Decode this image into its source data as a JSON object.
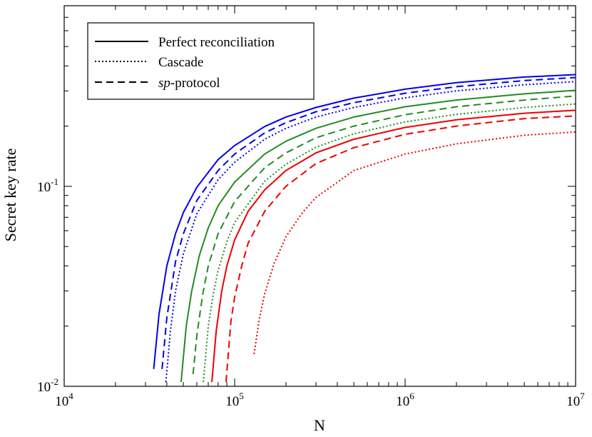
{
  "chart_data": {
    "type": "line",
    "xlabel": "N",
    "ylabel": "Secret key rate",
    "xscale": "log",
    "yscale": "log",
    "xlim": [
      10000,
      10000000
    ],
    "ylim": [
      0.01,
      0.8
    ],
    "x_ticks": [
      {
        "base": "10",
        "exp": "4",
        "value": 10000
      },
      {
        "base": "10",
        "exp": "5",
        "value": 100000
      },
      {
        "base": "10",
        "exp": "6",
        "value": 1000000
      },
      {
        "base": "10",
        "exp": "7",
        "value": 10000000
      }
    ],
    "y_ticks": [
      {
        "base": "10",
        "exp": "-2",
        "value": 0.01
      },
      {
        "base": "10",
        "exp": "-1",
        "value": 0.1
      }
    ],
    "grid": false,
    "legend": {
      "position": "top-left",
      "entries": [
        {
          "style": "solid",
          "label": "Perfect reconciliation",
          "italic_prefix": "",
          "suffix": ""
        },
        {
          "style": "dotted",
          "label": "Cascade",
          "italic_prefix": "",
          "suffix": ""
        },
        {
          "style": "dashed",
          "label": "",
          "italic_prefix": "sp",
          "suffix": "-protocol"
        }
      ]
    },
    "series": [
      {
        "color": "#0000ee",
        "style": "solid",
        "x": [
          33500,
          36000,
          40000,
          45000,
          50000,
          60000,
          80000,
          100000,
          150000,
          200000,
          300000,
          500000,
          1000000,
          2000000,
          5000000,
          10000000
        ],
        "values": [
          0.0122,
          0.023,
          0.04,
          0.058,
          0.074,
          0.099,
          0.136,
          0.16,
          0.199,
          0.222,
          0.248,
          0.276,
          0.306,
          0.33,
          0.352,
          0.362
        ]
      },
      {
        "color": "#0000ee",
        "style": "dashed",
        "x": [
          37500,
          40000,
          45000,
          50000,
          60000,
          80000,
          100000,
          150000,
          200000,
          300000,
          500000,
          1000000,
          2000000,
          5000000,
          10000000
        ],
        "values": [
          0.0122,
          0.022,
          0.042,
          0.058,
          0.085,
          0.12,
          0.145,
          0.185,
          0.208,
          0.236,
          0.262,
          0.292,
          0.315,
          0.338,
          0.35
        ]
      },
      {
        "color": "#0000ee",
        "style": "dotted",
        "x": [
          39500,
          42000,
          45000,
          50000,
          60000,
          80000,
          100000,
          150000,
          200000,
          300000,
          500000,
          1000000,
          2000000,
          5000000,
          10000000
        ],
        "values": [
          0.0105,
          0.019,
          0.03,
          0.046,
          0.073,
          0.108,
          0.132,
          0.172,
          0.195,
          0.222,
          0.248,
          0.277,
          0.3,
          0.322,
          0.334
        ]
      },
      {
        "color": "#228b22",
        "style": "solid",
        "x": [
          48500,
          52000,
          56000,
          62000,
          70000,
          80000,
          100000,
          150000,
          200000,
          300000,
          500000,
          1000000,
          2000000,
          5000000,
          10000000
        ],
        "values": [
          0.0105,
          0.02,
          0.03,
          0.045,
          0.062,
          0.08,
          0.105,
          0.145,
          0.168,
          0.195,
          0.222,
          0.25,
          0.27,
          0.29,
          0.302
        ]
      },
      {
        "color": "#228b22",
        "style": "dashed",
        "x": [
          57000,
          60000,
          65000,
          70000,
          80000,
          100000,
          150000,
          200000,
          300000,
          500000,
          1000000,
          2000000,
          5000000,
          10000000
        ],
        "values": [
          0.0115,
          0.018,
          0.029,
          0.04,
          0.058,
          0.084,
          0.124,
          0.147,
          0.175,
          0.2,
          0.228,
          0.25,
          0.27,
          0.283
        ]
      },
      {
        "color": "#228b22",
        "style": "dotted",
        "x": [
          65500,
          70000,
          75000,
          80000,
          90000,
          100000,
          150000,
          200000,
          300000,
          500000,
          1000000,
          2000000,
          5000000,
          10000000
        ],
        "values": [
          0.0105,
          0.02,
          0.029,
          0.038,
          0.053,
          0.066,
          0.106,
          0.129,
          0.157,
          0.183,
          0.21,
          0.229,
          0.248,
          0.258
        ]
      },
      {
        "color": "#ee0000",
        "style": "solid",
        "x": [
          73500,
          78000,
          84000,
          90000,
          100000,
          120000,
          150000,
          200000,
          300000,
          500000,
          1000000,
          2000000,
          5000000,
          10000000
        ],
        "values": [
          0.0105,
          0.019,
          0.03,
          0.04,
          0.054,
          0.075,
          0.096,
          0.12,
          0.147,
          0.172,
          0.197,
          0.215,
          0.232,
          0.24
        ]
      },
      {
        "color": "#ee0000",
        "style": "dashed",
        "x": [
          89000,
          95000,
          100000,
          110000,
          120000,
          150000,
          200000,
          300000,
          500000,
          1000000,
          2000000,
          5000000,
          10000000
        ],
        "values": [
          0.0105,
          0.021,
          0.028,
          0.04,
          0.052,
          0.075,
          0.1,
          0.13,
          0.156,
          0.182,
          0.2,
          0.218,
          0.225
        ]
      },
      {
        "color": "#ee0000",
        "style": "dotted",
        "x": [
          130000,
          140000,
          150000,
          170000,
          200000,
          250000,
          300000,
          500000,
          1000000,
          2000000,
          5000000,
          10000000
        ],
        "values": [
          0.0145,
          0.022,
          0.029,
          0.041,
          0.056,
          0.074,
          0.088,
          0.12,
          0.145,
          0.163,
          0.18,
          0.187
        ]
      }
    ]
  }
}
